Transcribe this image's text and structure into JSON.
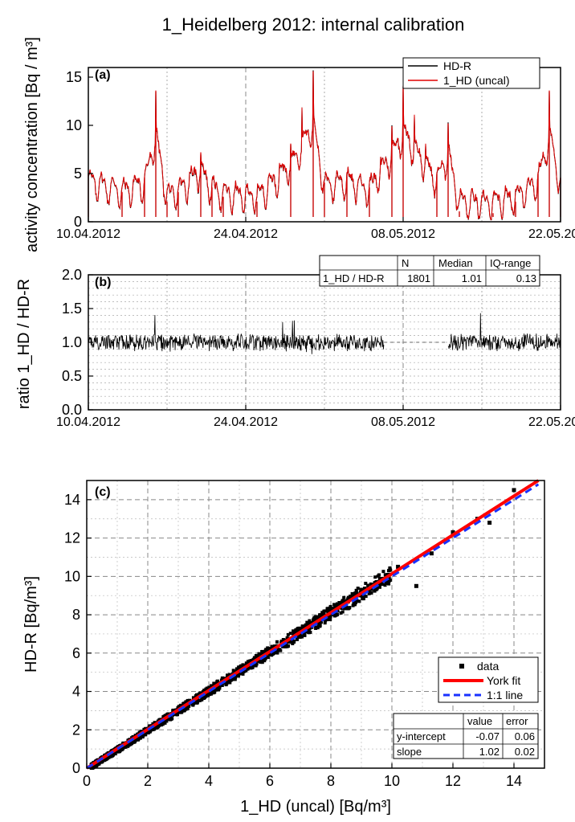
{
  "figure": {
    "title": "1_Heidelberg 2012: internal calibration"
  },
  "chart_data": [
    {
      "panel": "(a)",
      "type": "line",
      "ylabel": "activity concentration [Bq / m³]",
      "x_tick_labels": [
        "10.04.2012",
        "24.04.2012",
        "08.05.2012",
        "22.05.2012"
      ],
      "xlim": [
        "2012-04-10",
        "2012-05-22"
      ],
      "ylim": [
        0,
        16
      ],
      "y_ticks": [
        0,
        5,
        10,
        15
      ],
      "legend": {
        "placement": "top-right",
        "entries": [
          "HD-R",
          "1_HD (uncal)"
        ]
      },
      "series": [
        {
          "name": "HD-R",
          "color": "#000000",
          "x": [
            "2012-04-10",
            "2012-04-13",
            "2012-04-15",
            "2012-04-16",
            "2012-04-17",
            "2012-04-18",
            "2012-04-20",
            "2012-04-21",
            "2012-04-22",
            "2012-04-25",
            "2012-04-28",
            "2012-04-30",
            "2012-05-01",
            "2012-05-03",
            "2012-05-05",
            "2012-05-07",
            "2012-05-08",
            "2012-05-11",
            "2012-05-12",
            "2012-05-13",
            "2012-05-16",
            "2012-05-18",
            "2012-05-20",
            "2012-05-21",
            "2012-05-22"
          ],
          "values": [
            5.0,
            3.0,
            4.6,
            13.5,
            2.0,
            3.0,
            7.0,
            3.5,
            2.5,
            2.0,
            8.0,
            15.7,
            4.0,
            5.0,
            3.5,
            10.0,
            14.0,
            5.0,
            10.3,
            1.0,
            0.8,
            2.0,
            5.0,
            13.5,
            4.5
          ]
        },
        {
          "name": "1_HD (uncal)",
          "color": "#e00000",
          "x": [
            "2012-04-10",
            "2012-04-13",
            "2012-04-15",
            "2012-04-16",
            "2012-04-17",
            "2012-04-18",
            "2012-04-20",
            "2012-04-21",
            "2012-04-22",
            "2012-04-25",
            "2012-04-28",
            "2012-04-30",
            "2012-05-01",
            "2012-05-03",
            "2012-05-05",
            "2012-05-07",
            "2012-05-08",
            "2012-05-11",
            "2012-05-12",
            "2012-05-13",
            "2012-05-16",
            "2012-05-18",
            "2012-05-20",
            "2012-05-21",
            "2012-05-22"
          ],
          "values": [
            5.1,
            3.1,
            4.7,
            13.6,
            2.1,
            3.1,
            7.2,
            3.6,
            2.6,
            2.1,
            8.1,
            15.6,
            4.1,
            5.1,
            3.6,
            9.9,
            14.1,
            5.1,
            10.2,
            1.1,
            0.9,
            2.1,
            5.1,
            13.6,
            4.6
          ]
        }
      ]
    },
    {
      "panel": "(b)",
      "type": "line",
      "ylabel": "ratio 1_HD / HD-R",
      "x_tick_labels": [
        "10.04.2012",
        "24.04.2012",
        "08.05.2012",
        "22.05.2012"
      ],
      "xlim": [
        "2012-04-10",
        "2012-05-22"
      ],
      "ylim": [
        0,
        2
      ],
      "y_ticks": [
        "0.0",
        "0.5",
        "1.0",
        "1.5",
        "2.0"
      ],
      "series": [
        {
          "name": "",
          "color": "#000000",
          "x": [
            "2012-04-10",
            "2012-04-12",
            "2012-04-14",
            "2012-04-16",
            "2012-04-18",
            "2012-04-20",
            "2012-04-22",
            "2012-04-24",
            "2012-04-26",
            "2012-04-28",
            "2012-04-30",
            "2012-05-02",
            "2012-05-04",
            "2012-05-06",
            "2012-05-12",
            "2012-05-14",
            "2012-05-16",
            "2012-05-18",
            "2012-05-20",
            "2012-05-22"
          ],
          "values": [
            1.0,
            1.1,
            0.9,
            1.6,
            1.0,
            1.2,
            0.9,
            1.1,
            1.0,
            1.4,
            0.8,
            1.2,
            0.9,
            1.0,
            1.0,
            1.5,
            1.0,
            1.3,
            0.9,
            1.0
          ]
        }
      ],
      "stats_table": {
        "headers": [
          "",
          "N",
          "Median",
          "IQ-range"
        ],
        "rows": [
          [
            "1_HD / HD-R",
            "1801",
            "1.01",
            "0.13"
          ]
        ]
      }
    },
    {
      "panel": "(c)",
      "type": "scatter",
      "xlabel": "1_HD (uncal) [Bq/m³]",
      "ylabel": "HD-R [Bq/m³]",
      "xlim": [
        0,
        15
      ],
      "ylim": [
        0,
        15
      ],
      "x_ticks": [
        0,
        2,
        4,
        6,
        8,
        10,
        12,
        14
      ],
      "y_ticks": [
        0,
        2,
        4,
        6,
        8,
        10,
        12,
        14
      ],
      "legend": {
        "placement": "lower-right",
        "entries": [
          "data",
          "York fit",
          "1:1 line"
        ]
      },
      "series": [
        {
          "name": "data",
          "color": "#000000",
          "x": [
            0.3,
            0.6,
            0.9,
            1.2,
            1.5,
            1.8,
            2.1,
            2.4,
            2.7,
            3.0,
            3.3,
            3.6,
            3.9,
            4.2,
            4.5,
            4.8,
            5.2,
            5.6,
            6.0,
            6.4,
            6.8,
            7.2,
            7.6,
            8.0,
            8.5,
            9.0,
            9.5,
            10.2,
            10.8,
            11.3,
            12.0,
            12.8,
            13.2,
            14.0
          ],
          "values": [
            0.3,
            0.65,
            0.9,
            1.25,
            1.5,
            1.9,
            2.1,
            2.45,
            2.7,
            3.1,
            3.3,
            3.7,
            3.9,
            4.3,
            4.5,
            4.9,
            5.3,
            5.7,
            6.2,
            6.5,
            7.0,
            7.3,
            7.8,
            8.1,
            8.7,
            9.3,
            9.7,
            10.5,
            9.5,
            11.2,
            12.3,
            13.0,
            12.8,
            14.5
          ]
        },
        {
          "name": "York fit",
          "color": "#ff0000",
          "x": [
            0,
            14.8
          ],
          "values": [
            -0.07,
            15.03
          ]
        },
        {
          "name": "1:1 line",
          "color": "#1a32ff",
          "x": [
            0,
            14.8
          ],
          "values": [
            0,
            14.8
          ]
        }
      ],
      "fit_table": {
        "headers": [
          "",
          "value",
          "error"
        ],
        "rows": [
          [
            "y-intercept",
            "-0.07",
            "0.06"
          ],
          [
            "slope",
            "1.02",
            "0.02"
          ]
        ]
      }
    }
  ]
}
